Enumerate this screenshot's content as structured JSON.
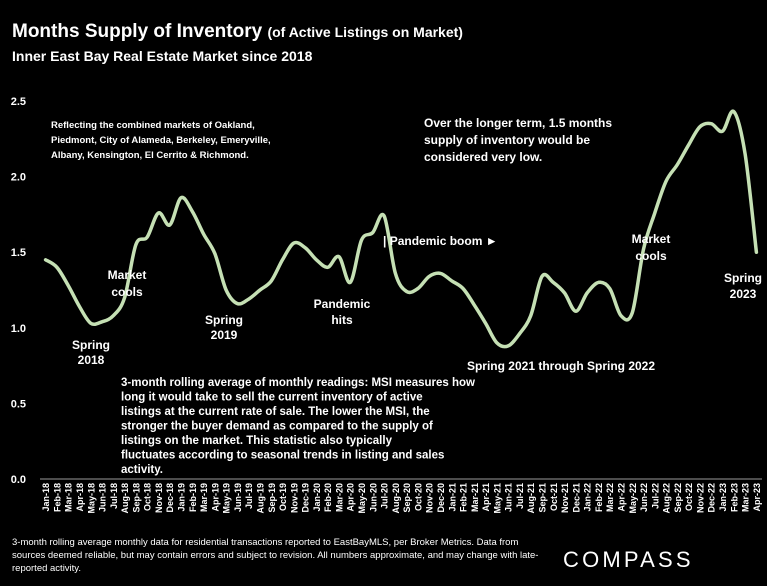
{
  "title": {
    "main": "Months Supply of Inventory",
    "paren": "(of Active Listings on Market)",
    "subtitle": "Inner East Bay Real Estate Market since 2018"
  },
  "colors": {
    "background": "#000000",
    "line": "#c5e0b4",
    "text": "#ffffff",
    "axis": "#9a9a9a"
  },
  "chart_data": {
    "type": "line",
    "ylim": [
      0,
      2.5
    ],
    "yticks": [
      "0.0",
      "0.5",
      "1.0",
      "1.5",
      "2.0",
      "2.5"
    ],
    "grid": false,
    "categories": [
      "Jan-18",
      "Feb-18",
      "Mar-18",
      "Apr-18",
      "May-18",
      "Jun-18",
      "Jul-18",
      "Aug-18",
      "Sep-18",
      "Oct-18",
      "Nov-18",
      "Dec-18",
      "Jan-19",
      "Feb-19",
      "Mar-19",
      "Apr-19",
      "May-19",
      "Jun-19",
      "Jul-19",
      "Aug-19",
      "Sep-19",
      "Oct-19",
      "Nov-19",
      "Dec-19",
      "Jan-20",
      "Feb-20",
      "Mar-20",
      "Apr-20",
      "May-20",
      "Jun-20",
      "Jul-20",
      "Aug-20",
      "Sep-20",
      "Oct-20",
      "Nov-20",
      "Dec-20",
      "Jan-21",
      "Feb-21",
      "Mar-21",
      "Apr-21",
      "May-21",
      "Jun-21",
      "Jul-21",
      "Aug-21",
      "Sep-21",
      "Oct-21",
      "Nov-21",
      "Dec-21",
      "Jan-22",
      "Feb-22",
      "Mar-22",
      "Apr-22",
      "May-22",
      "Jun-22",
      "Jul-22",
      "Aug-22",
      "Sep-22",
      "Oct-22",
      "Nov-22",
      "Dec-22",
      "Jan-23",
      "Feb-23",
      "Mar-23",
      "Apr-23"
    ],
    "series": [
      {
        "values": [
          1.45,
          1.4,
          1.28,
          1.14,
          1.03,
          1.04,
          1.08,
          1.2,
          1.55,
          1.6,
          1.76,
          1.68,
          1.86,
          1.77,
          1.62,
          1.49,
          1.25,
          1.16,
          1.19,
          1.25,
          1.31,
          1.45,
          1.56,
          1.53,
          1.45,
          1.4,
          1.47,
          1.3,
          1.58,
          1.63,
          1.74,
          1.36,
          1.24,
          1.26,
          1.34,
          1.36,
          1.31,
          1.26,
          1.15,
          1.03,
          0.9,
          0.88,
          0.96,
          1.08,
          1.34,
          1.3,
          1.23,
          1.11,
          1.23,
          1.3,
          1.26,
          1.08,
          1.1,
          1.52,
          1.76,
          1.97,
          2.08,
          2.21,
          2.33,
          2.35,
          2.3,
          2.43,
          2.15,
          1.5
        ]
      }
    ],
    "annotations": [
      "Reflecting the combined markets of Oakland, Piedmont, City of Alameda, Berkeley, Emeryville, Albany, Kensington, El Cerrito & Richmond.",
      "Over the longer term, 1.5 months supply of inventory would be considered very low.",
      "Spring",
      "2018",
      "Market",
      "cools",
      "Spring",
      "2019",
      "Pandemic",
      "hits",
      "| Pandemic boom ►",
      "Spring 2021 through Spring 2022",
      "Market",
      "cools",
      "Spring",
      "2023",
      "3-month rolling average of monthly readings: MSI measures how long it would take to sell the current inventory of active listings at the current rate of sale. The lower the MSI, the stronger the buyer demand as compared to the supply of listings on the market. This statistic also typically fluctuates according to seasonal trends in listing and sales activity."
    ]
  },
  "footnote": "3-month rolling average monthly data for residential transactions reported to EastBayMLS, per Broker Metrics. Data from sources deemed reliable, but may contain errors and subject to revision. All numbers approximate, and may change with late-reported activity.",
  "logo": "COMPASS"
}
